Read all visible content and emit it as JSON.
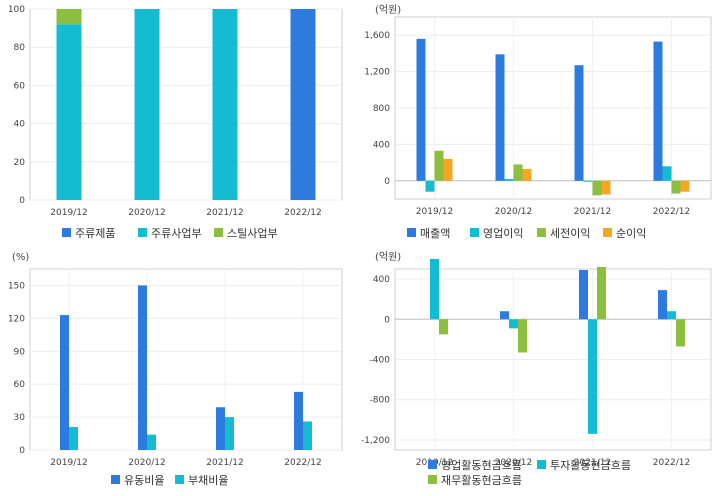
{
  "chart_data": [
    {
      "id": "chart1",
      "type": "bar",
      "stacked": true,
      "unit": "",
      "categories": [
        "2019/12",
        "2020/12",
        "2021/12",
        "2022/12"
      ],
      "ylim": [
        0,
        100
      ],
      "yticks": [
        "100",
        "80",
        "60",
        "40",
        "20",
        "0"
      ],
      "ytick_values": [
        100,
        80,
        60,
        40,
        20,
        0
      ],
      "series": [
        {
          "name": "주류제품",
          "color": "#2e7be0",
          "values": [
            0,
            0,
            0,
            100
          ]
        },
        {
          "name": "주류사업부",
          "color": "#14bcd2",
          "values": [
            92,
            100,
            100,
            0
          ]
        },
        {
          "name": "스틸사업부",
          "color": "#8cbf3f",
          "values": [
            8,
            0,
            0,
            0
          ]
        }
      ]
    },
    {
      "id": "chart2",
      "type": "bar",
      "stacked": false,
      "unit": "(억원)",
      "categories": [
        "2019/12",
        "2020/12",
        "2021/12",
        "2022/12"
      ],
      "ylim": [
        -200,
        1800
      ],
      "yticks": [
        "1,600",
        "1,200",
        "800",
        "400",
        "0"
      ],
      "ytick_values": [
        1600,
        1200,
        800,
        400,
        0
      ],
      "series": [
        {
          "name": "매출액",
          "color": "#2e7be0",
          "values": [
            1560,
            1390,
            1270,
            1530
          ]
        },
        {
          "name": "영업이익",
          "color": "#14bcd2",
          "values": [
            -120,
            20,
            -10,
            160
          ]
        },
        {
          "name": "세전이익",
          "color": "#8cbf3f",
          "values": [
            330,
            180,
            -160,
            -140
          ]
        },
        {
          "name": "순이익",
          "color": "#f5a623",
          "values": [
            240,
            130,
            -150,
            -120
          ]
        }
      ]
    },
    {
      "id": "chart3",
      "type": "bar",
      "stacked": false,
      "unit": "(%)",
      "categories": [
        "2019/12",
        "2020/12",
        "2021/12",
        "2022/12"
      ],
      "ylim": [
        0,
        165
      ],
      "yticks": [
        "150",
        "120",
        "90",
        "60",
        "30",
        "0"
      ],
      "ytick_values": [
        150,
        120,
        90,
        60,
        30,
        0
      ],
      "series": [
        {
          "name": "유동비율",
          "color": "#2e7be0",
          "values": [
            123,
            150,
            39,
            53
          ]
        },
        {
          "name": "부채비율",
          "color": "#14bcd2",
          "values": [
            21,
            14,
            30,
            26
          ]
        }
      ]
    },
    {
      "id": "chart4",
      "type": "bar",
      "stacked": false,
      "unit": "(억원)",
      "categories": [
        "2019/12",
        "2020/12",
        "2021/12",
        "2022/12"
      ],
      "ylim": [
        -1300,
        500
      ],
      "yticks": [
        "400",
        "0",
        "-400",
        "-800",
        "-1,200"
      ],
      "ytick_values": [
        400,
        0,
        -400,
        -800,
        -1200
      ],
      "series": [
        {
          "name": "영업활동현금흐름",
          "color": "#2e7be0",
          "values": [
            0,
            80,
            490,
            290
          ]
        },
        {
          "name": "투자활동현금흐름",
          "color": "#14bcd2",
          "values": [
            600,
            -90,
            -1140,
            80
          ]
        },
        {
          "name": "재무활동현금흐름",
          "color": "#8cbf3f",
          "values": [
            -150,
            -330,
            520,
            -270
          ]
        }
      ]
    }
  ]
}
